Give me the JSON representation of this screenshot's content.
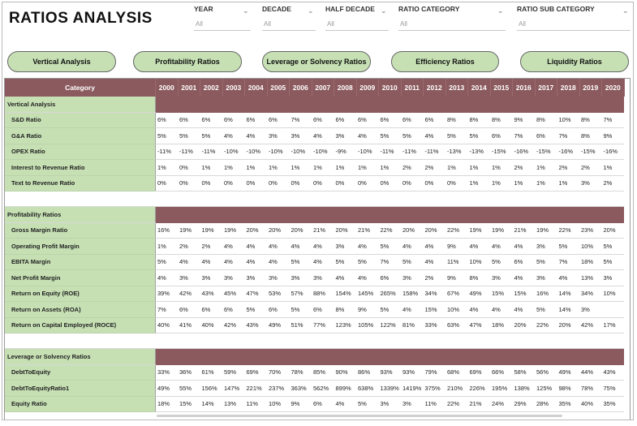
{
  "title": "RATIOS ANALYSIS",
  "filters": [
    {
      "label": "YEAR",
      "value": "All"
    },
    {
      "label": "DECADE",
      "value": "All"
    },
    {
      "label": "HALF DECADE",
      "value": "All"
    },
    {
      "label": "RATIO CATEGORY",
      "value": "All"
    },
    {
      "label": "RATIO SUB CATEGORY",
      "value": "All"
    }
  ],
  "nav_buttons": [
    "Vertical Analysis",
    "Profitability Ratios",
    "Leverage or Solvency Ratios",
    "Efficiency Ratios",
    "Liquidity Ratios"
  ],
  "table": {
    "category_header": "Category",
    "years": [
      "2000",
      "2001",
      "2002",
      "2003",
      "2004",
      "2005",
      "2006",
      "2007",
      "2008",
      "2009",
      "2010",
      "2011",
      "2012",
      "2013",
      "2014",
      "2015",
      "2016",
      "2017",
      "2018",
      "2019",
      "2020"
    ],
    "sections": [
      {
        "name": "Vertical Analysis",
        "rows": [
          {
            "label": "S&D Ratio",
            "values": [
              "6%",
              "6%",
              "6%",
              "6%",
              "6%",
              "6%",
              "7%",
              "6%",
              "6%",
              "6%",
              "6%",
              "6%",
              "6%",
              "8%",
              "8%",
              "8%",
              "9%",
              "8%",
              "10%",
              "8%",
              "7%"
            ]
          },
          {
            "label": "G&A Ratio",
            "values": [
              "5%",
              "5%",
              "5%",
              "4%",
              "4%",
              "3%",
              "3%",
              "4%",
              "3%",
              "4%",
              "5%",
              "5%",
              "4%",
              "5%",
              "5%",
              "6%",
              "7%",
              "6%",
              "7%",
              "8%",
              "9%"
            ]
          },
          {
            "label": "OPEX Ratio",
            "values": [
              "-11%",
              "-11%",
              "-11%",
              "-10%",
              "-10%",
              "-10%",
              "-10%",
              "-10%",
              "-9%",
              "-10%",
              "-11%",
              "-11%",
              "-11%",
              "-13%",
              "-13%",
              "-15%",
              "-16%",
              "-15%",
              "-16%",
              "-15%",
              "-16%"
            ]
          },
          {
            "label": "Interest to Revenue Ratio",
            "values": [
              "1%",
              "0%",
              "1%",
              "1%",
              "1%",
              "1%",
              "1%",
              "1%",
              "1%",
              "1%",
              "1%",
              "2%",
              "2%",
              "1%",
              "1%",
              "1%",
              "2%",
              "1%",
              "2%",
              "2%",
              "1%"
            ]
          },
          {
            "label": "Text to Revenue Ratio",
            "values": [
              "0%",
              "0%",
              "0%",
              "0%",
              "0%",
              "0%",
              "0%",
              "0%",
              "0%",
              "0%",
              "0%",
              "0%",
              "0%",
              "0%",
              "1%",
              "1%",
              "1%",
              "1%",
              "1%",
              "3%",
              "2%"
            ]
          }
        ]
      },
      {
        "name": "Profitability Ratios",
        "rows": [
          {
            "label": "Gross Margin Ratio",
            "values": [
              "16%",
              "19%",
              "19%",
              "19%",
              "20%",
              "20%",
              "20%",
              "21%",
              "20%",
              "21%",
              "22%",
              "20%",
              "20%",
              "22%",
              "19%",
              "19%",
              "21%",
              "19%",
              "22%",
              "23%",
              "20%"
            ]
          },
          {
            "label": "Operating Profit Margin",
            "values": [
              "1%",
              "2%",
              "2%",
              "4%",
              "4%",
              "4%",
              "4%",
              "4%",
              "3%",
              "4%",
              "5%",
              "4%",
              "4%",
              "9%",
              "4%",
              "4%",
              "4%",
              "3%",
              "5%",
              "10%",
              "5%"
            ]
          },
          {
            "label": "EBITA Margin",
            "values": [
              "5%",
              "4%",
              "4%",
              "4%",
              "4%",
              "4%",
              "5%",
              "4%",
              "5%",
              "5%",
              "7%",
              "5%",
              "4%",
              "11%",
              "10%",
              "5%",
              "6%",
              "5%",
              "7%",
              "18%",
              "5%"
            ]
          },
          {
            "label": "Net Profit Margin",
            "values": [
              "4%",
              "3%",
              "3%",
              "3%",
              "3%",
              "3%",
              "3%",
              "3%",
              "4%",
              "4%",
              "6%",
              "3%",
              "2%",
              "9%",
              "8%",
              "3%",
              "4%",
              "3%",
              "4%",
              "13%",
              "3%"
            ]
          },
          {
            "label": "Return on Equity (ROE)",
            "values": [
              "39%",
              "42%",
              "43%",
              "45%",
              "47%",
              "53%",
              "57%",
              "88%",
              "154%",
              "145%",
              "265%",
              "158%",
              "34%",
              "67%",
              "49%",
              "15%",
              "15%",
              "16%",
              "14%",
              "34%",
              "10%"
            ]
          },
          {
            "label": "Return on Assets (ROA)",
            "values": [
              "7%",
              "6%",
              "6%",
              "6%",
              "5%",
              "6%",
              "5%",
              "6%",
              "8%",
              "9%",
              "5%",
              "4%",
              "15%",
              "10%",
              "4%",
              "4%",
              "4%",
              "5%",
              "14%",
              "3%",
              ""
            ]
          },
          {
            "label": "Return on Capital Employed (ROCE)",
            "values": [
              "40%",
              "41%",
              "40%",
              "42%",
              "43%",
              "49%",
              "51%",
              "77%",
              "123%",
              "105%",
              "122%",
              "81%",
              "33%",
              "63%",
              "47%",
              "18%",
              "20%",
              "22%",
              "20%",
              "42%",
              "17%"
            ]
          }
        ]
      },
      {
        "name": "Leverage or Solvency Ratios",
        "rows": [
          {
            "label": "DebtToEquity",
            "values": [
              "33%",
              "36%",
              "61%",
              "59%",
              "69%",
              "70%",
              "78%",
              "85%",
              "90%",
              "86%",
              "93%",
              "93%",
              "79%",
              "68%",
              "69%",
              "66%",
              "58%",
              "56%",
              "49%",
              "44%",
              "43%"
            ]
          },
          {
            "label": "DebtToEquityRatio1",
            "values": [
              "49%",
              "55%",
              "156%",
              "147%",
              "221%",
              "237%",
              "363%",
              "562%",
              "899%",
              "638%",
              "1339%",
              "1419%",
              "375%",
              "210%",
              "226%",
              "195%",
              "138%",
              "125%",
              "98%",
              "78%",
              "75%"
            ]
          },
          {
            "label": "Equity Ratio",
            "values": [
              "18%",
              "15%",
              "14%",
              "13%",
              "11%",
              "10%",
              "9%",
              "6%",
              "4%",
              "5%",
              "3%",
              "3%",
              "11%",
              "22%",
              "21%",
              "24%",
              "29%",
              "28%",
              "35%",
              "40%",
              "35%"
            ]
          }
        ]
      }
    ]
  }
}
